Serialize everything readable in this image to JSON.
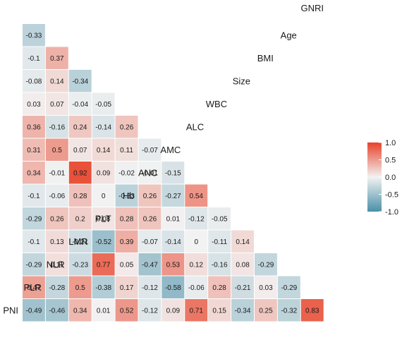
{
  "chart_data": {
    "type": "heatmap",
    "variables": [
      "PNI",
      "PLR",
      "NLR",
      "LMR",
      "PLT",
      "Hb",
      "ANC",
      "AMC",
      "ALC",
      "WBC",
      "Size",
      "BMI",
      "Age",
      "GNRI"
    ],
    "matrix": [
      [
        -0.49,
        -0.46,
        0.34,
        0.01,
        0.52,
        -0.12,
        0.09,
        0.71,
        0.15,
        -0.34,
        0.25,
        -0.32,
        0.83
      ],
      [
        0.47,
        -0.28,
        0.5,
        -0.38,
        0.17,
        -0.12,
        -0.58,
        -0.06,
        0.28,
        -0.21,
        0.03,
        -0.29
      ],
      [
        -0.29,
        0.11,
        -0.23,
        0.77,
        0.05,
        -0.47,
        0.53,
        0.12,
        -0.16,
        0.08,
        -0.29
      ],
      [
        -0.1,
        0.13,
        -0.21,
        -0.52,
        0.39,
        -0.07,
        -0.14,
        0,
        -0.11,
        0.14
      ],
      [
        -0.29,
        0.26,
        0.2,
        0.08,
        0.28,
        0.26,
        0.01,
        -0.12,
        -0.05
      ],
      [
        -0.1,
        -0.06,
        0.28,
        0,
        -0.33,
        0.26,
        -0.27,
        0.54
      ],
      [
        0.34,
        -0.01,
        0.92,
        0.09,
        -0.02,
        -0.01,
        -0.15
      ],
      [
        0.31,
        0.5,
        0.07,
        0.14,
        0.11,
        -0.07
      ],
      [
        0.36,
        -0.16,
        0.24,
        -0.14,
        0.26
      ],
      [
        0.03,
        0.07,
        -0.04,
        -0.05
      ],
      [
        -0.08,
        0.14,
        -0.34
      ],
      [
        -0.1,
        0.37
      ],
      [
        -0.33
      ]
    ],
    "value_labels": [
      [
        "-0.49",
        "-0.46",
        "0.34",
        "0.01",
        "0.52",
        "-0.12",
        "0.09",
        "0.71",
        "0.15",
        "-0.34",
        "0.25",
        "-0.32",
        "0.83"
      ],
      [
        "0.47",
        "-0.28",
        "0.5",
        "-0.38",
        "0.17",
        "-0.12",
        "-0.58",
        "-0.06",
        "0.28",
        "-0.21",
        "0.03",
        "-0.29"
      ],
      [
        "-0.29",
        "0.11",
        "-0.23",
        "0.77",
        "0.05",
        "-0.47",
        "0.53",
        "0.12",
        "-0.16",
        "0.08",
        "-0.29"
      ],
      [
        "-0.1",
        "0.13",
        "-0.21",
        "-0.52",
        "0.39",
        "-0.07",
        "-0.14",
        "0",
        "-0.11",
        "0.14"
      ],
      [
        "-0.29",
        "0.26",
        "0.2",
        "0.08",
        "0.28",
        "0.26",
        "0.01",
        "-0.12",
        "-0.05"
      ],
      [
        "-0.1",
        "-0.06",
        "0.28",
        "0",
        "-0.33",
        "0.26",
        "-0.27",
        "0.54"
      ],
      [
        "0.34",
        "-0.01",
        "0.92",
        "0.09",
        "-0.02",
        "-0.01",
        "-0.15"
      ],
      [
        "0.31",
        "0.5",
        "0.07",
        "0.14",
        "0.11",
        "-0.07"
      ],
      [
        "0.36",
        "-0.16",
        "0.24",
        "-0.14",
        "0.26"
      ],
      [
        "0.03",
        "0.07",
        "-0.04",
        "-0.05"
      ],
      [
        "-0.08",
        "0.14",
        "-0.34"
      ],
      [
        "-0.1",
        "0.37"
      ],
      [
        "-0.33"
      ]
    ],
    "value_range": [
      -1,
      1
    ],
    "legend": {
      "placement": "right",
      "ticks": [
        "1.0",
        "0.5",
        "0.0",
        "-0.5",
        "-1.0"
      ],
      "tick_values": [
        1,
        0.5,
        0,
        -0.5,
        -1
      ]
    },
    "colors": {
      "negative": "#4a90a8",
      "neutral": "#f2f2f2",
      "positive": "#e8432a"
    },
    "grid": false
  }
}
